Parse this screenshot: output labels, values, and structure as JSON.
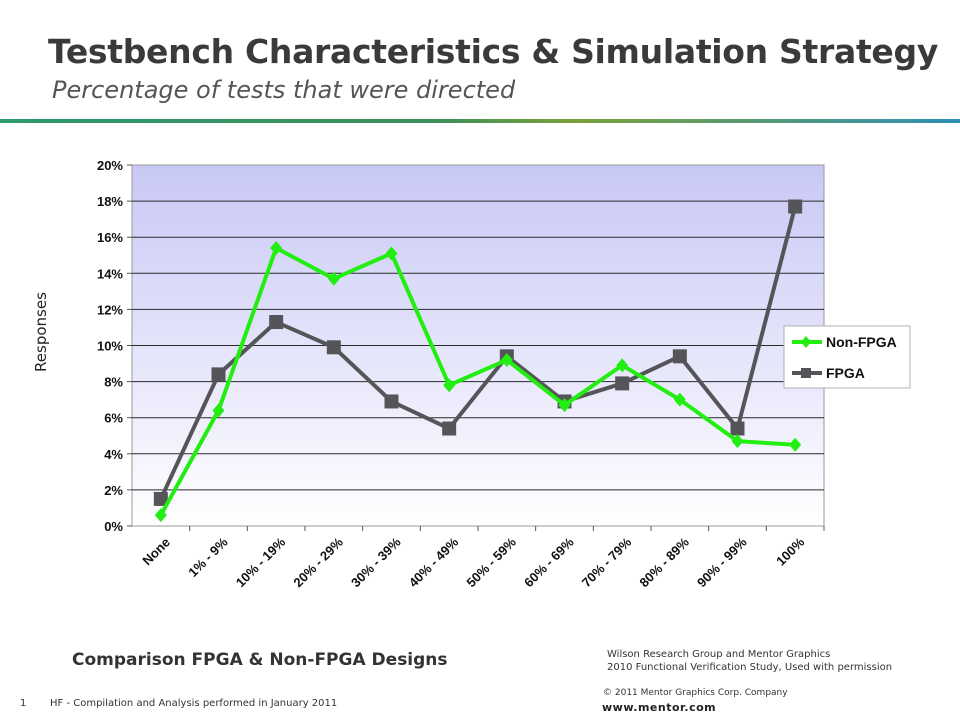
{
  "slide": {
    "title": "Testbench Characteristics & Simulation Strategy",
    "subtitle": "Percentage of tests that were directed",
    "caption": "Comparison FPGA & Non-FPGA Designs",
    "credit_line1": "Wilson Research Group and Mentor Graphics",
    "credit_line2": "2010 Functional Verification Study,  Used with permission",
    "page_number": "1",
    "note": "HF - Compilation and Analysis performed in January 2011",
    "copyright": "© 2011 Mentor Graphics Corp. Company",
    "website": "www.mentor.com"
  },
  "chart_data": {
    "type": "line",
    "ylabel": "Responses",
    "ylim": [
      0,
      20
    ],
    "y_ticks": [
      "0%",
      "2%",
      "4%",
      "6%",
      "8%",
      "10%",
      "12%",
      "14%",
      "16%",
      "18%",
      "20%"
    ],
    "categories": [
      "None",
      "1% - 9%",
      "10% - 19%",
      "20% - 29%",
      "30% - 39%",
      "40% - 49%",
      "50% - 59%",
      "60% - 69%",
      "70% - 79%",
      "80% - 89%",
      "90% - 99%",
      "100%"
    ],
    "series": [
      {
        "name": "Non-FPGA",
        "color": "#22ee11",
        "marker": "diamond",
        "values": [
          0.6,
          6.4,
          15.4,
          13.7,
          15.1,
          7.8,
          9.2,
          6.7,
          8.9,
          7.0,
          4.7,
          4.5
        ]
      },
      {
        "name": "FPGA",
        "color": "#555559",
        "marker": "square",
        "values": [
          1.5,
          8.4,
          11.3,
          9.9,
          6.9,
          5.4,
          9.4,
          6.9,
          7.9,
          9.4,
          5.4,
          17.7
        ]
      }
    ],
    "grid": true,
    "legend_position": "right"
  }
}
